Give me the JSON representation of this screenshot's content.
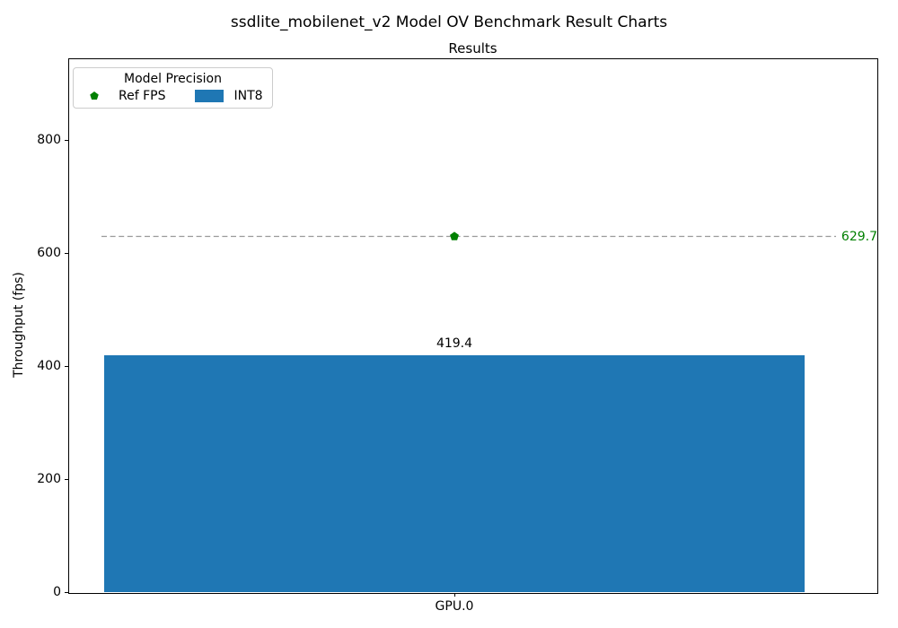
{
  "figure": {
    "suptitle": "ssdlite_mobilenet_v2 Model OV Benchmark Result Charts"
  },
  "chart_data": {
    "type": "bar",
    "title": "Results",
    "xlabel": "",
    "ylabel": "Throughput (fps)",
    "categories": [
      "GPU.0"
    ],
    "ylim": [
      0,
      945
    ],
    "yticks": [
      0,
      200,
      400,
      600,
      800
    ],
    "grid": false,
    "series": [
      {
        "name": "INT8",
        "render": "bar",
        "values": [
          419.4
        ],
        "value_labels": [
          "419.4"
        ],
        "color": "#1f77b4"
      },
      {
        "name": "Ref FPS",
        "render": "reference_line",
        "values": [
          629.7
        ],
        "value_labels": [
          "629.7"
        ],
        "marker": "pentagon",
        "marker_color": "#008000",
        "line_color": "#999999",
        "line_style": "dashed",
        "label_color": "#008000"
      }
    ],
    "legend": {
      "title": "Model Precision",
      "position": "upper-left",
      "entries": [
        {
          "label": "Ref FPS",
          "marker": "pentagon",
          "color": "#008000"
        },
        {
          "label": "INT8",
          "marker": "swatch",
          "color": "#1f77b4"
        }
      ]
    }
  }
}
